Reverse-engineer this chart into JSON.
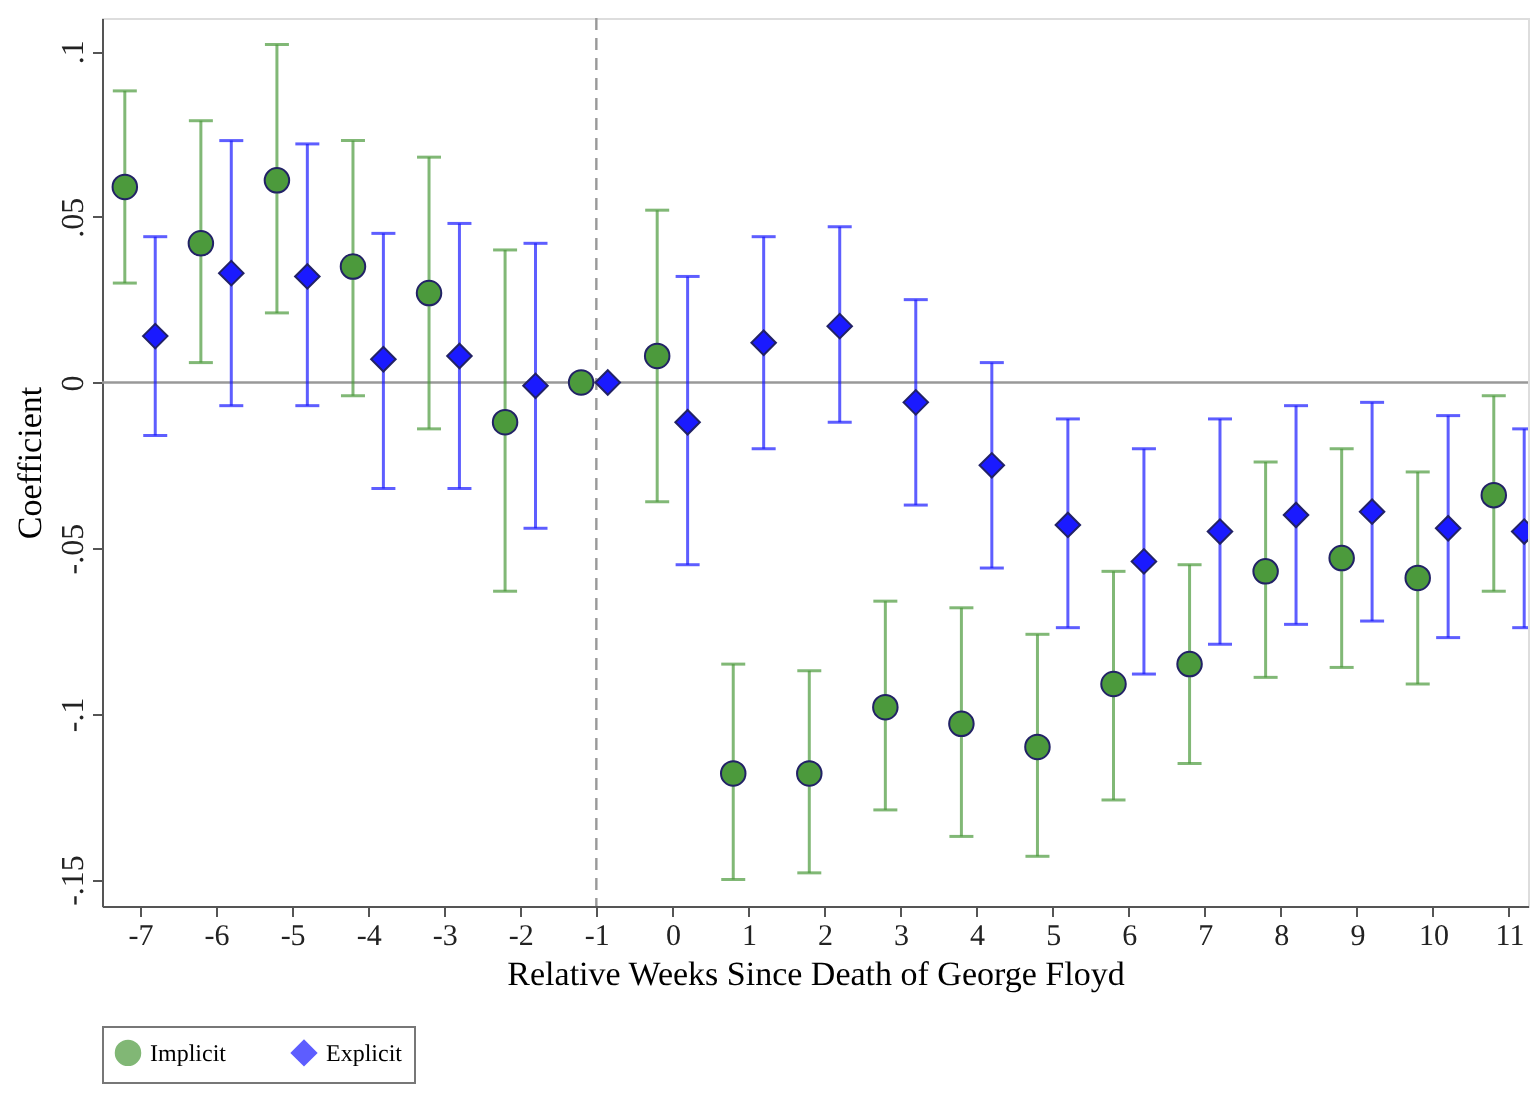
{
  "chart_data": {
    "type": "scatter",
    "xlabel": "Relative Weeks Since Death of George Floyd",
    "ylabel": "Coefficient",
    "xlim": [
      -7.5,
      11.25
    ],
    "ylim": [
      -0.158,
      0.11
    ],
    "xticks": [
      -7,
      -6,
      -5,
      -4,
      -3,
      -2,
      -1,
      0,
      1,
      2,
      3,
      4,
      5,
      6,
      7,
      8,
      9,
      10,
      11
    ],
    "yticks": [
      {
        "value": 0.1,
        "label": ".1"
      },
      {
        "value": 0.05,
        "label": ".05"
      },
      0,
      {
        "value": -0.05,
        "label": "-.05"
      },
      {
        "value": -0.1,
        "label": "-.1"
      },
      {
        "value": -0.15,
        "label": "-.15"
      }
    ],
    "grid": false,
    "legend": "bottom",
    "ref_lines": [
      {
        "axis": "y",
        "value": 0,
        "color": "#999999",
        "line_style": "solid"
      },
      {
        "axis": "x",
        "value": -1,
        "color": "#999999",
        "line_style": "dashed"
      }
    ],
    "series": [
      {
        "name": "Implicit",
        "color": "#4c9a3c",
        "marker": "circle",
        "x": [
          -7.2,
          -6.2,
          -5.2,
          -4.2,
          -3.2,
          -2.2,
          -1.2,
          -0.2,
          0.8,
          1.8,
          2.8,
          3.8,
          4.8,
          5.8,
          6.8,
          7.8,
          8.8,
          9.8,
          10.8
        ],
        "values": [
          0.059,
          0.042,
          0.061,
          0.035,
          0.027,
          -0.012,
          0,
          0.008,
          -0.118,
          -0.118,
          -0.098,
          -0.103,
          -0.11,
          -0.091,
          -0.085,
          -0.057,
          -0.053,
          -0.059,
          -0.034
        ],
        "errors": [
          [
            0.03,
            0.088
          ],
          [
            0.006,
            0.079
          ],
          [
            0.021,
            0.102
          ],
          [
            -0.004,
            0.073
          ],
          [
            -0.014,
            0.068
          ],
          [
            -0.063,
            0.04
          ],
          null,
          [
            -0.036,
            0.052
          ],
          [
            -0.15,
            -0.085
          ],
          [
            -0.148,
            -0.087
          ],
          [
            -0.129,
            -0.066
          ],
          [
            -0.137,
            -0.068
          ],
          [
            -0.143,
            -0.076
          ],
          [
            -0.126,
            -0.057
          ],
          [
            -0.115,
            -0.055
          ],
          [
            -0.089,
            -0.024
          ],
          [
            -0.086,
            -0.02
          ],
          [
            -0.091,
            -0.027
          ],
          [
            -0.063,
            -0.004
          ]
        ]
      },
      {
        "name": "Explicit",
        "color": "#1a1aff",
        "marker": "diamond",
        "x": [
          -6.8,
          -5.8,
          -4.8,
          -3.8,
          -2.8,
          -1.8,
          -0.85,
          0.2,
          1.2,
          2.2,
          3.2,
          4.2,
          5.2,
          6.2,
          7.2,
          8.2,
          9.2,
          10.2,
          11.2
        ],
        "values": [
          0.014,
          0.033,
          0.032,
          0.007,
          0.008,
          -0.001,
          0,
          -0.012,
          0.012,
          0.017,
          -0.006,
          -0.025,
          -0.043,
          -0.054,
          -0.045,
          -0.04,
          -0.039,
          -0.044,
          -0.045
        ],
        "errors": [
          [
            -0.016,
            0.044
          ],
          [
            -0.007,
            0.073
          ],
          [
            -0.007,
            0.072
          ],
          [
            -0.032,
            0.045
          ],
          [
            -0.032,
            0.048
          ],
          [
            -0.044,
            0.042
          ],
          null,
          [
            -0.055,
            0.032
          ],
          [
            -0.02,
            0.044
          ],
          [
            -0.012,
            0.047
          ],
          [
            -0.037,
            0.025
          ],
          [
            -0.056,
            0.006
          ],
          [
            -0.074,
            -0.011
          ],
          [
            -0.088,
            -0.02
          ],
          [
            -0.079,
            -0.011
          ],
          [
            -0.073,
            -0.007
          ],
          [
            -0.072,
            -0.006
          ],
          [
            -0.077,
            -0.01
          ],
          [
            -0.074,
            -0.014
          ]
        ]
      }
    ]
  }
}
